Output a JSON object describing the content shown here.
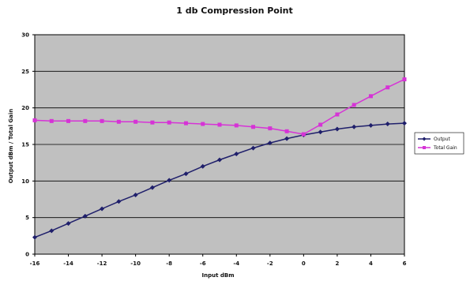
{
  "chart_data": {
    "type": "line",
    "title": "1 db Compression Point",
    "xlabel": "Input dBm",
    "ylabel": "Output dBm / Total Gain",
    "xlim": [
      -16,
      6
    ],
    "ylim": [
      0,
      30
    ],
    "xticks": [
      -16,
      -14,
      -12,
      -10,
      -8,
      -6,
      -4,
      -2,
      0,
      2,
      4,
      6
    ],
    "yticks": [
      0,
      5,
      10,
      15,
      20,
      25,
      30
    ],
    "grid": true,
    "legend_position": "right",
    "x": [
      -16,
      -15,
      -14,
      -13,
      -12,
      -11,
      -10,
      -9,
      -8,
      -7,
      -6,
      -5,
      -4,
      -3,
      -2,
      -1,
      0,
      1,
      2,
      3,
      4,
      5,
      6
    ],
    "series": [
      {
        "name": "Output",
        "color": "#1f1f6b",
        "marker": "diamond",
        "values": [
          2.3,
          3.2,
          4.2,
          5.2,
          6.2,
          7.2,
          8.1,
          9.1,
          10.1,
          11.0,
          12.0,
          12.9,
          13.7,
          14.5,
          15.2,
          15.8,
          16.3,
          16.7,
          17.1,
          17.4,
          17.6,
          17.8,
          17.9
        ]
      },
      {
        "name": "Total Gain",
        "color": "#d633d6",
        "marker": "square",
        "values": [
          18.3,
          18.2,
          18.2,
          18.2,
          18.2,
          18.1,
          18.1,
          18.0,
          18.0,
          17.9,
          17.8,
          17.7,
          17.6,
          17.4,
          17.2,
          16.8,
          16.4,
          17.7,
          19.1,
          20.4,
          21.6,
          22.8,
          23.9
        ]
      }
    ],
    "colors": {
      "plot_bg": "#c0c0c0",
      "grid": "#000000",
      "axis": "#000000"
    }
  }
}
